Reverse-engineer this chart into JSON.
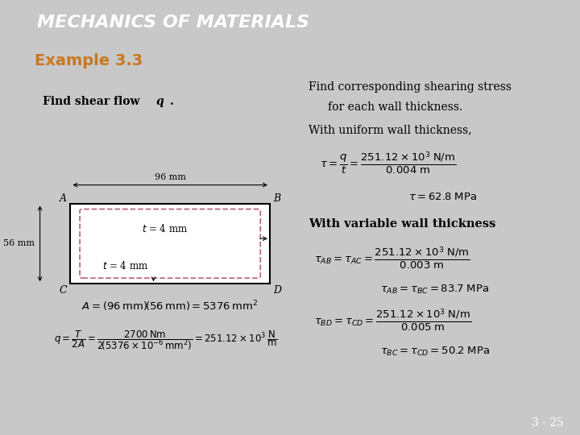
{
  "title": "MECHANICS OF MATERIALS",
  "subtitle": "Example 3.3",
  "title_bg": "#1a2b5c",
  "title_color": "#ffffff",
  "subtitle_bg": "#d8d8e8",
  "subtitle_color": "#c87820",
  "body_bg": "#ffffff",
  "page_bg": "#c8c8c8",
  "orange_strip": "#c87820",
  "left_text1_bold": "Find shear flow ",
  "left_text1_italic": "q",
  "right_text1": "Find corresponding shearing stress\n    for each wall thickness.",
  "right_text2": "With uniform wall thickness,",
  "right_text5": "With variable wall thickness",
  "bottom_bg": "#2a3a6a",
  "bottom_text": "3 - 25",
  "box_outer_color": "#000000",
  "box_inner_color": "#bb6688",
  "dim_96": "96 mm",
  "dim_56": "56 mm"
}
